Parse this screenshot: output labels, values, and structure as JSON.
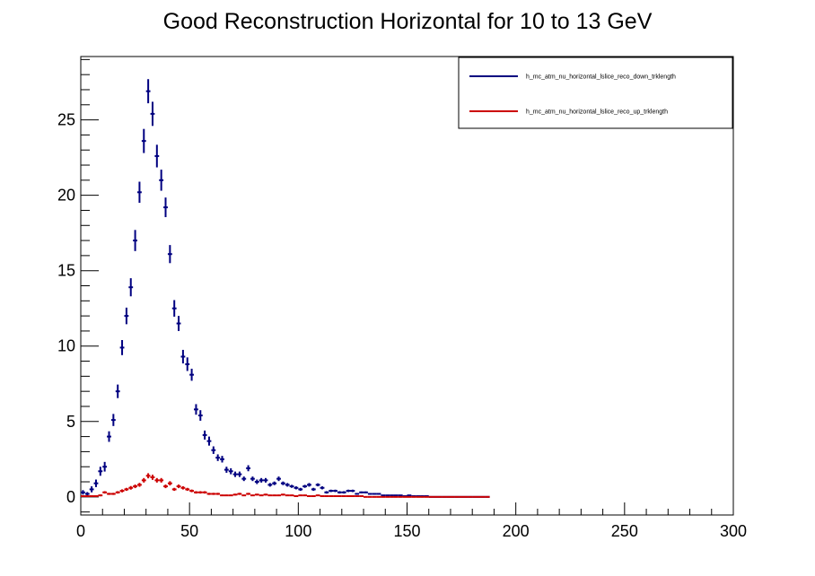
{
  "chart_data": {
    "type": "scatter",
    "title": "Good Reconstruction Horizontal for 10 to 13 GeV",
    "xlabel": "",
    "ylabel": "",
    "xlim": [
      0,
      300
    ],
    "ylim": [
      -1.2,
      29.2
    ],
    "x_ticks": [
      0,
      50,
      100,
      150,
      200,
      250,
      300
    ],
    "y_ticks": [
      0,
      5,
      10,
      15,
      20,
      25
    ],
    "x_tick_labels": [
      "0",
      "50",
      "100",
      "150",
      "200",
      "250",
      "300"
    ],
    "y_tick_labels": [
      "0",
      "5",
      "10",
      "15",
      "20",
      "25"
    ],
    "grid": false,
    "legend_position": "top-right",
    "series": [
      {
        "name": "h_mc_atm_nu_horizontal_lslice_reco_down_trklength",
        "color": "#000080",
        "bin_width": 2,
        "x": [
          1,
          3,
          5,
          7,
          9,
          11,
          13,
          15,
          17,
          19,
          21,
          23,
          25,
          27,
          29,
          31,
          33,
          35,
          37,
          39,
          41,
          43,
          45,
          47,
          49,
          51,
          53,
          55,
          57,
          59,
          61,
          63,
          65,
          67,
          69,
          71,
          73,
          75,
          77,
          79,
          81,
          83,
          85,
          87,
          89,
          91,
          93,
          95,
          97,
          99,
          101,
          103,
          105,
          107,
          109,
          111,
          113,
          115,
          117,
          119,
          121,
          123,
          125,
          127,
          129,
          131,
          133,
          135,
          137,
          139,
          141,
          143,
          145,
          147,
          149,
          151,
          153,
          155,
          157,
          159,
          161,
          163,
          165,
          167,
          169,
          171,
          173,
          175,
          177,
          179,
          181,
          183,
          185,
          187
        ],
        "y": [
          0.3,
          0.2,
          0.5,
          0.9,
          1.7,
          2.0,
          4.0,
          5.1,
          7.0,
          9.9,
          12.0,
          13.9,
          17.0,
          20.2,
          23.6,
          26.9,
          25.4,
          22.6,
          21.0,
          19.2,
          16.1,
          12.5,
          11.5,
          9.3,
          8.8,
          8.1,
          5.8,
          5.4,
          4.1,
          3.7,
          3.1,
          2.6,
          2.5,
          1.8,
          1.7,
          1.5,
          1.5,
          1.2,
          1.9,
          1.2,
          1.0,
          1.1,
          1.1,
          0.8,
          0.9,
          1.2,
          0.9,
          0.8,
          0.7,
          0.6,
          0.5,
          0.7,
          0.8,
          0.5,
          0.8,
          0.6,
          0.3,
          0.4,
          0.4,
          0.3,
          0.3,
          0.4,
          0.4,
          0.2,
          0.3,
          0.3,
          0.2,
          0.2,
          0.2,
          0.1,
          0.1,
          0.1,
          0.1,
          0.1,
          0.05,
          0.1,
          0.05,
          0.05,
          0.05,
          0.05,
          0.0,
          0.0,
          0.0,
          0.0,
          0.0,
          0.0,
          0.0,
          0.0,
          0.0,
          0.0,
          0.0,
          0.0,
          0.0,
          0.0
        ],
        "err": [
          0.15,
          0.12,
          0.2,
          0.25,
          0.3,
          0.32,
          0.35,
          0.4,
          0.45,
          0.5,
          0.55,
          0.6,
          0.7,
          0.7,
          0.8,
          0.8,
          0.8,
          0.75,
          0.7,
          0.65,
          0.6,
          0.55,
          0.5,
          0.45,
          0.45,
          0.4,
          0.35,
          0.35,
          0.3,
          0.3,
          0.25,
          0.22,
          0.22,
          0.2,
          0.2,
          0.18,
          0.18,
          0.15,
          0.2,
          0.15,
          0.15,
          0.15,
          0.15,
          0.12,
          0.12,
          0.15,
          0.12,
          0.12,
          0.1,
          0.1,
          0.1,
          0.1,
          0.12,
          0.1,
          0.1,
          0.1,
          0.08,
          0.08,
          0.08,
          0.08,
          0.08,
          0.08,
          0.08,
          0.06,
          0.06,
          0.06,
          0.05,
          0.05,
          0.05,
          0.04,
          0.04,
          0.04,
          0.04,
          0.04,
          0.03,
          0.03,
          0.03,
          0.03,
          0.03,
          0.03,
          0.02,
          0.02,
          0.02,
          0.02,
          0.02,
          0.02,
          0.02,
          0.02,
          0.02,
          0.02,
          0.02,
          0.02,
          0.02,
          0.02
        ]
      },
      {
        "name": "h_mc_atm_nu_horizontal_lslice_reco_up_trklength",
        "color": "#cc0000",
        "bin_width": 2,
        "x": [
          1,
          3,
          5,
          7,
          9,
          11,
          13,
          15,
          17,
          19,
          21,
          23,
          25,
          27,
          29,
          31,
          33,
          35,
          37,
          39,
          41,
          43,
          45,
          47,
          49,
          51,
          53,
          55,
          57,
          59,
          61,
          63,
          65,
          67,
          69,
          71,
          73,
          75,
          77,
          79,
          81,
          83,
          85,
          87,
          89,
          91,
          93,
          95,
          97,
          99,
          101,
          103,
          105,
          107,
          109,
          111,
          113,
          115,
          117,
          119,
          121,
          123,
          125,
          127,
          129,
          131,
          133,
          135,
          137,
          139,
          141,
          143,
          145,
          147,
          149,
          151,
          153,
          155,
          157,
          159,
          161,
          163,
          165,
          167,
          169,
          171,
          173,
          175,
          177,
          179,
          181,
          183,
          185,
          187
        ],
        "y": [
          0.05,
          0.05,
          0.05,
          0.05,
          0.1,
          0.3,
          0.2,
          0.2,
          0.3,
          0.4,
          0.5,
          0.6,
          0.7,
          0.8,
          1.1,
          1.4,
          1.3,
          1.1,
          1.1,
          0.7,
          0.9,
          0.5,
          0.7,
          0.6,
          0.5,
          0.4,
          0.3,
          0.3,
          0.3,
          0.2,
          0.2,
          0.2,
          0.1,
          0.1,
          0.1,
          0.15,
          0.2,
          0.1,
          0.2,
          0.1,
          0.15,
          0.1,
          0.15,
          0.1,
          0.1,
          0.1,
          0.15,
          0.1,
          0.1,
          0.05,
          0.1,
          0.1,
          0.05,
          0.05,
          0.1,
          0.05,
          0.05,
          0.05,
          0.05,
          0.05,
          0.05,
          0.05,
          0.05,
          0.05,
          0.05,
          0.0,
          0.0,
          0.0,
          0.0,
          0.0,
          0.0,
          0.0,
          0.0,
          0.0,
          0.0,
          0.0,
          0.0,
          0.0,
          0.0,
          0.0,
          0.0,
          0.0,
          0.0,
          0.0,
          0.0,
          0.0,
          0.0,
          0.0,
          0.0,
          0.0,
          0.0,
          0.0,
          0.0,
          0.0
        ],
        "err": [
          0.05,
          0.05,
          0.05,
          0.05,
          0.06,
          0.08,
          0.07,
          0.07,
          0.08,
          0.1,
          0.1,
          0.12,
          0.12,
          0.13,
          0.15,
          0.17,
          0.17,
          0.15,
          0.15,
          0.12,
          0.14,
          0.1,
          0.12,
          0.11,
          0.1,
          0.09,
          0.08,
          0.08,
          0.08,
          0.07,
          0.07,
          0.07,
          0.05,
          0.05,
          0.05,
          0.06,
          0.07,
          0.05,
          0.07,
          0.05,
          0.06,
          0.05,
          0.06,
          0.05,
          0.05,
          0.05,
          0.06,
          0.05,
          0.05,
          0.04,
          0.05,
          0.05,
          0.04,
          0.04,
          0.05,
          0.04,
          0.04,
          0.04,
          0.04,
          0.04,
          0.04,
          0.04,
          0.04,
          0.04,
          0.04,
          0.02,
          0.02,
          0.02,
          0.02,
          0.02,
          0.02,
          0.02,
          0.02,
          0.02,
          0.02,
          0.02,
          0.02,
          0.02,
          0.02,
          0.02,
          0.02,
          0.02,
          0.02,
          0.02,
          0.02,
          0.02,
          0.02,
          0.02,
          0.02,
          0.02,
          0.02,
          0.02,
          0.02,
          0.02
        ]
      }
    ]
  }
}
